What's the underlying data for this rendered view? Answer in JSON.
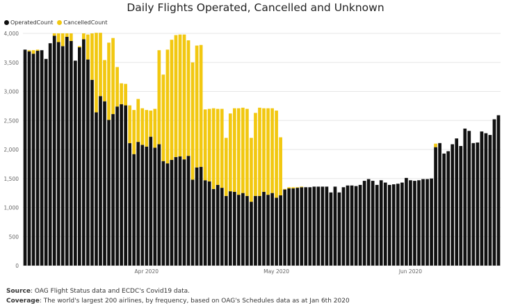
{
  "title": "Daily Flights Operated, Cancelled and Unknown",
  "legend": {
    "items": [
      {
        "label": "OperatedCount",
        "color": "#111111"
      },
      {
        "label": "CancelledCount",
        "color": "#f2c811"
      }
    ]
  },
  "notes": {
    "source_label": "Source",
    "source_text": ": OAG Flight Status data and ECDC's Covid19 data.",
    "coverage_label": "Coverage",
    "coverage_text": ": The world's largest 200 airlines, by frequency, based on OAG's Schedules data as at Jan 6th 2020"
  },
  "chart_data": {
    "type": "bar",
    "stacked": true,
    "title": "Daily Flights Operated, Cancelled and Unknown",
    "ylim": [
      0,
      4000
    ],
    "yticks": [
      "0",
      "500",
      "1,000",
      "1,500",
      "2,000",
      "2,500",
      "3,000",
      "3,500",
      "4,000"
    ],
    "ytick_values": [
      0,
      500,
      1000,
      1500,
      2000,
      2500,
      3000,
      3500,
      4000
    ],
    "xtick_labels": [
      {
        "label": "Apr 2020",
        "index": 29
      },
      {
        "label": "May 2020",
        "index": 60
      },
      {
        "label": "Jun 2020",
        "index": 92
      }
    ],
    "grid": true,
    "legend_position": "top-left",
    "series": [
      {
        "name": "OperatedCount",
        "color": "#111111",
        "values": [
          3720,
          3690,
          3650,
          3700,
          3710,
          3560,
          3830,
          3960,
          3850,
          3780,
          3940,
          3870,
          3530,
          3760,
          3900,
          3550,
          3200,
          2640,
          2920,
          2830,
          2510,
          2610,
          2740,
          2780,
          2760,
          2110,
          1920,
          2130,
          2080,
          2050,
          2220,
          2030,
          2090,
          1800,
          1760,
          1820,
          1870,
          1880,
          1830,
          1890,
          1480,
          1690,
          1700,
          1470,
          1450,
          1320,
          1390,
          1340,
          1200,
          1280,
          1270,
          1220,
          1250,
          1200,
          1100,
          1200,
          1200,
          1270,
          1220,
          1250,
          1170,
          1210,
          1310,
          1330,
          1330,
          1340,
          1350,
          1350,
          1350,
          1360,
          1360,
          1360,
          1360,
          1260,
          1360,
          1260,
          1350,
          1380,
          1380,
          1370,
          1390,
          1460,
          1490,
          1460,
          1390,
          1470,
          1430,
          1390,
          1400,
          1410,
          1430,
          1510,
          1470,
          1460,
          1470,
          1490,
          1490,
          1500,
          2040,
          2110,
          1930,
          1970,
          2090,
          2190,
          2060,
          2360,
          2320,
          2110,
          2120,
          2310,
          2280,
          2250,
          2520,
          2590
        ]
      },
      {
        "name": "CancelledCount",
        "color": "#f2c811",
        "values": [
          0,
          20,
          60,
          20,
          0,
          0,
          0,
          40,
          150,
          220,
          60,
          130,
          0,
          20,
          100,
          430,
          800,
          1370,
          1090,
          710,
          1330,
          1310,
          680,
          360,
          370,
          650,
          760,
          740,
          630,
          630,
          450,
          670,
          1620,
          1490,
          1960,
          2070,
          2100,
          2100,
          2150,
          1990,
          2020,
          2100,
          2100,
          1220,
          1250,
          1390,
          1310,
          1360,
          1000,
          1340,
          1440,
          1490,
          1470,
          1500,
          1100,
          1430,
          1520,
          1440,
          1490,
          1460,
          1500,
          1000,
          10,
          20,
          20,
          10,
          10,
          0,
          0,
          0,
          0,
          0,
          0,
          0,
          0,
          0,
          0,
          0,
          0,
          0,
          0,
          0,
          0,
          0,
          0,
          0,
          0,
          0,
          0,
          0,
          0,
          0,
          0,
          0,
          0,
          0,
          0,
          0,
          60,
          0,
          0,
          0,
          0,
          0,
          0,
          0,
          0,
          0,
          0,
          0,
          0,
          0,
          0,
          0
        ]
      }
    ]
  }
}
